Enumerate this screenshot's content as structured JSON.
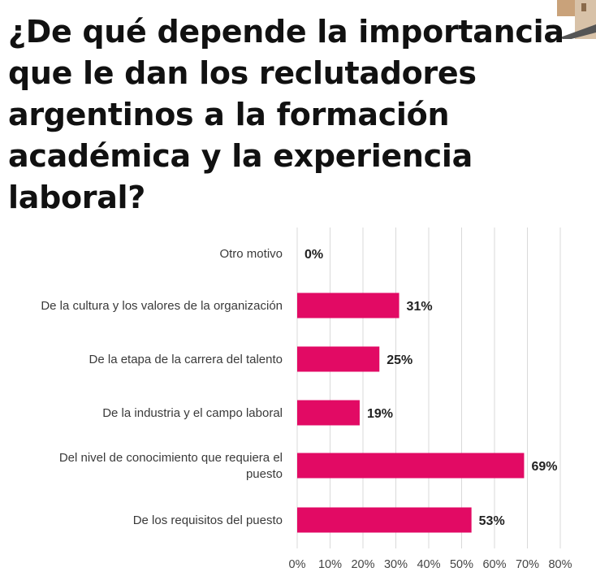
{
  "colors": {
    "bar": "#e20a64",
    "grid": "#d9d9d9",
    "title": "#111111"
  },
  "chart_data": {
    "type": "bar",
    "orientation": "horizontal",
    "title": "¿De qué depende la importancia que le dan los reclutadores argentinos a la formación académica y la experiencia laboral?",
    "categories": [
      "Otro motivo",
      "De la cultura y los valores de la organización",
      "De la etapa de la carrera del talento",
      "De la industria y el campo laboral",
      "Del nivel de conocimiento que requiera el puesto",
      "De los requisitos del puesto"
    ],
    "category_lines": [
      [
        "Otro motivo"
      ],
      [
        "De la cultura y los valores de la organización"
      ],
      [
        "De la etapa de la carrera del talento"
      ],
      [
        "De la industria y el campo laboral"
      ],
      [
        "Del nivel de conocimiento que requiera el",
        "puesto"
      ],
      [
        "De los requisitos del puesto"
      ]
    ],
    "values": [
      0,
      31,
      25,
      19,
      69,
      53
    ],
    "value_labels": [
      "0%",
      "31%",
      "25%",
      "19%",
      "69%",
      "53%"
    ],
    "xlim": [
      0,
      80
    ],
    "xticks": [
      0,
      10,
      20,
      30,
      40,
      50,
      60,
      70,
      80
    ],
    "xtick_labels": [
      "0%",
      "10%",
      "20%",
      "30%",
      "40%",
      "50%",
      "60%",
      "70%",
      "80%"
    ],
    "xlabel": "",
    "ylabel": "",
    "grid": true
  }
}
